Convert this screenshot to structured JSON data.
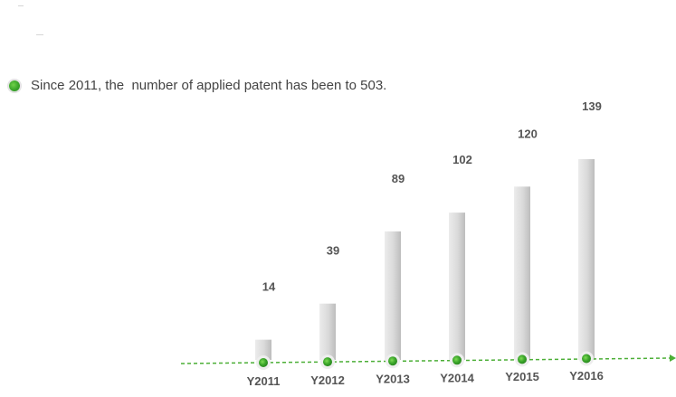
{
  "headline": "Since 2011, the  number of applied patent has been to 503.",
  "colors": {
    "bar_fill": "#d9d9d9",
    "bar_edge": "#b9b9b9",
    "axis_line": "#4caf37",
    "marker": "#3aa52a",
    "text": "#555555"
  },
  "chart_data": {
    "type": "bar",
    "categories": [
      "Y2011",
      "Y2012",
      "Y2013",
      "Y2014",
      "Y2015",
      "Y2016"
    ],
    "values": [
      14,
      39,
      89,
      102,
      120,
      139
    ],
    "title": "",
    "xlabel": "",
    "ylabel": "",
    "ylim": [
      0,
      139
    ],
    "grid": false,
    "legend": "none"
  }
}
